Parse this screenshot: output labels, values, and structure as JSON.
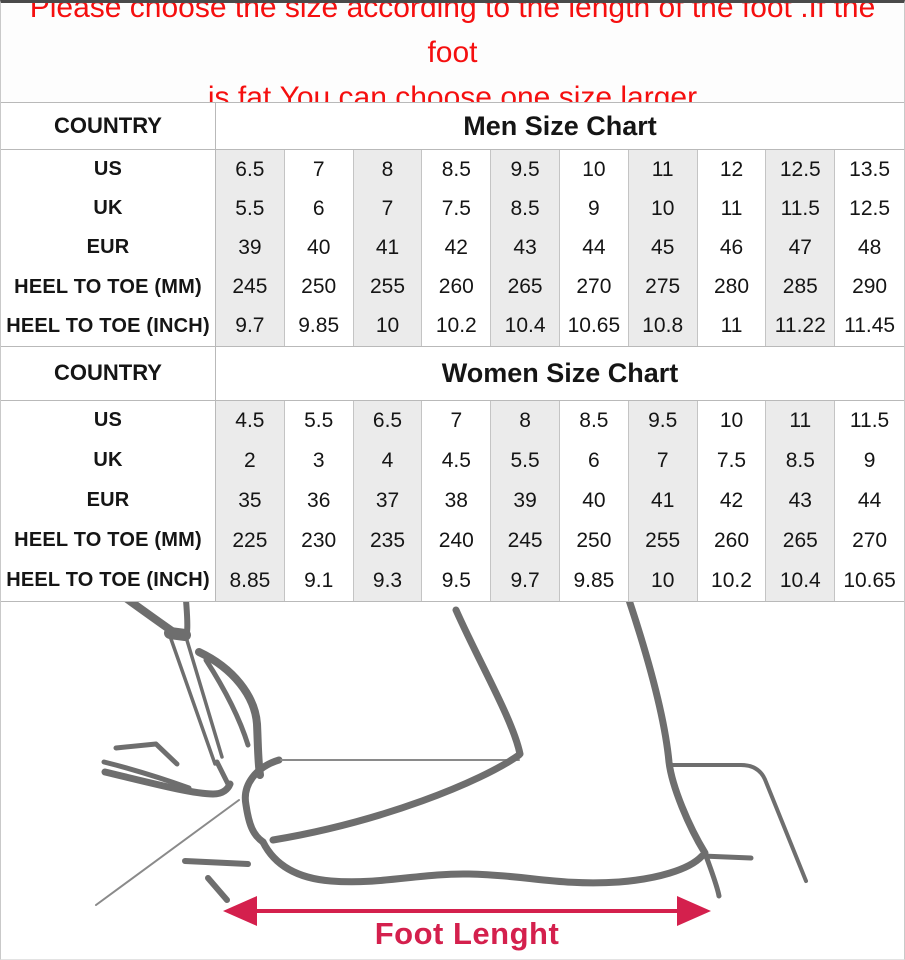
{
  "notice": {
    "line1": "Please choose the size according to the length of the foot .If the foot",
    "line2": "is fat,You can choose one size larger"
  },
  "tables": [
    {
      "id": "men",
      "corner_label": "COUNTRY",
      "title": "Men Size Chart",
      "rows": [
        {
          "label": "US",
          "values": [
            "6.5",
            "7",
            "8",
            "8.5",
            "9.5",
            "10",
            "11",
            "12",
            "12.5",
            "13.5"
          ]
        },
        {
          "label": "UK",
          "values": [
            "5.5",
            "6",
            "7",
            "7.5",
            "8.5",
            "9",
            "10",
            "11",
            "11.5",
            "12.5"
          ]
        },
        {
          "label": "EUR",
          "values": [
            "39",
            "40",
            "41",
            "42",
            "43",
            "44",
            "45",
            "46",
            "47",
            "48"
          ]
        },
        {
          "label": "HEEL TO TOE (MM)",
          "values": [
            "245",
            "250",
            "255",
            "260",
            "265",
            "270",
            "275",
            "280",
            "285",
            "290"
          ]
        },
        {
          "label": "HEEL TO TOE (INCH)",
          "values": [
            "9.7",
            "9.85",
            "10",
            "10.2",
            "10.4",
            "10.65",
            "10.8",
            "11",
            "11.22",
            "11.45"
          ]
        }
      ]
    },
    {
      "id": "women",
      "corner_label": "COUNTRY",
      "title": "Women Size Chart",
      "rows": [
        {
          "label": "US",
          "values": [
            "4.5",
            "5.5",
            "6.5",
            "7",
            "8",
            "8.5",
            "9.5",
            "10",
            "11",
            "11.5"
          ]
        },
        {
          "label": "UK",
          "values": [
            "2",
            "3",
            "4",
            "4.5",
            "5.5",
            "6",
            "7",
            "7.5",
            "8.5",
            "9"
          ]
        },
        {
          "label": "EUR",
          "values": [
            "35",
            "36",
            "37",
            "38",
            "39",
            "40",
            "41",
            "42",
            "43",
            "44"
          ]
        },
        {
          "label": "HEEL TO TOE (MM)",
          "values": [
            "225",
            "230",
            "235",
            "240",
            "245",
            "250",
            "255",
            "260",
            "265",
            "270"
          ]
        },
        {
          "label": "HEEL TO TOE (INCH)",
          "values": [
            "8.85",
            "9.1",
            "9.3",
            "9.5",
            "9.7",
            "9.85",
            "10",
            "10.2",
            "10.4",
            "10.65"
          ]
        }
      ]
    }
  ],
  "figure": {
    "arrow_label": "Foot Lenght"
  },
  "colors": {
    "notice_red": "#f50f0f",
    "arrow_red": "#d4204d",
    "drawing_gray": "#6e6e6e",
    "shade_gray": "#ebebeb",
    "table_border": "#b9b9b9"
  }
}
